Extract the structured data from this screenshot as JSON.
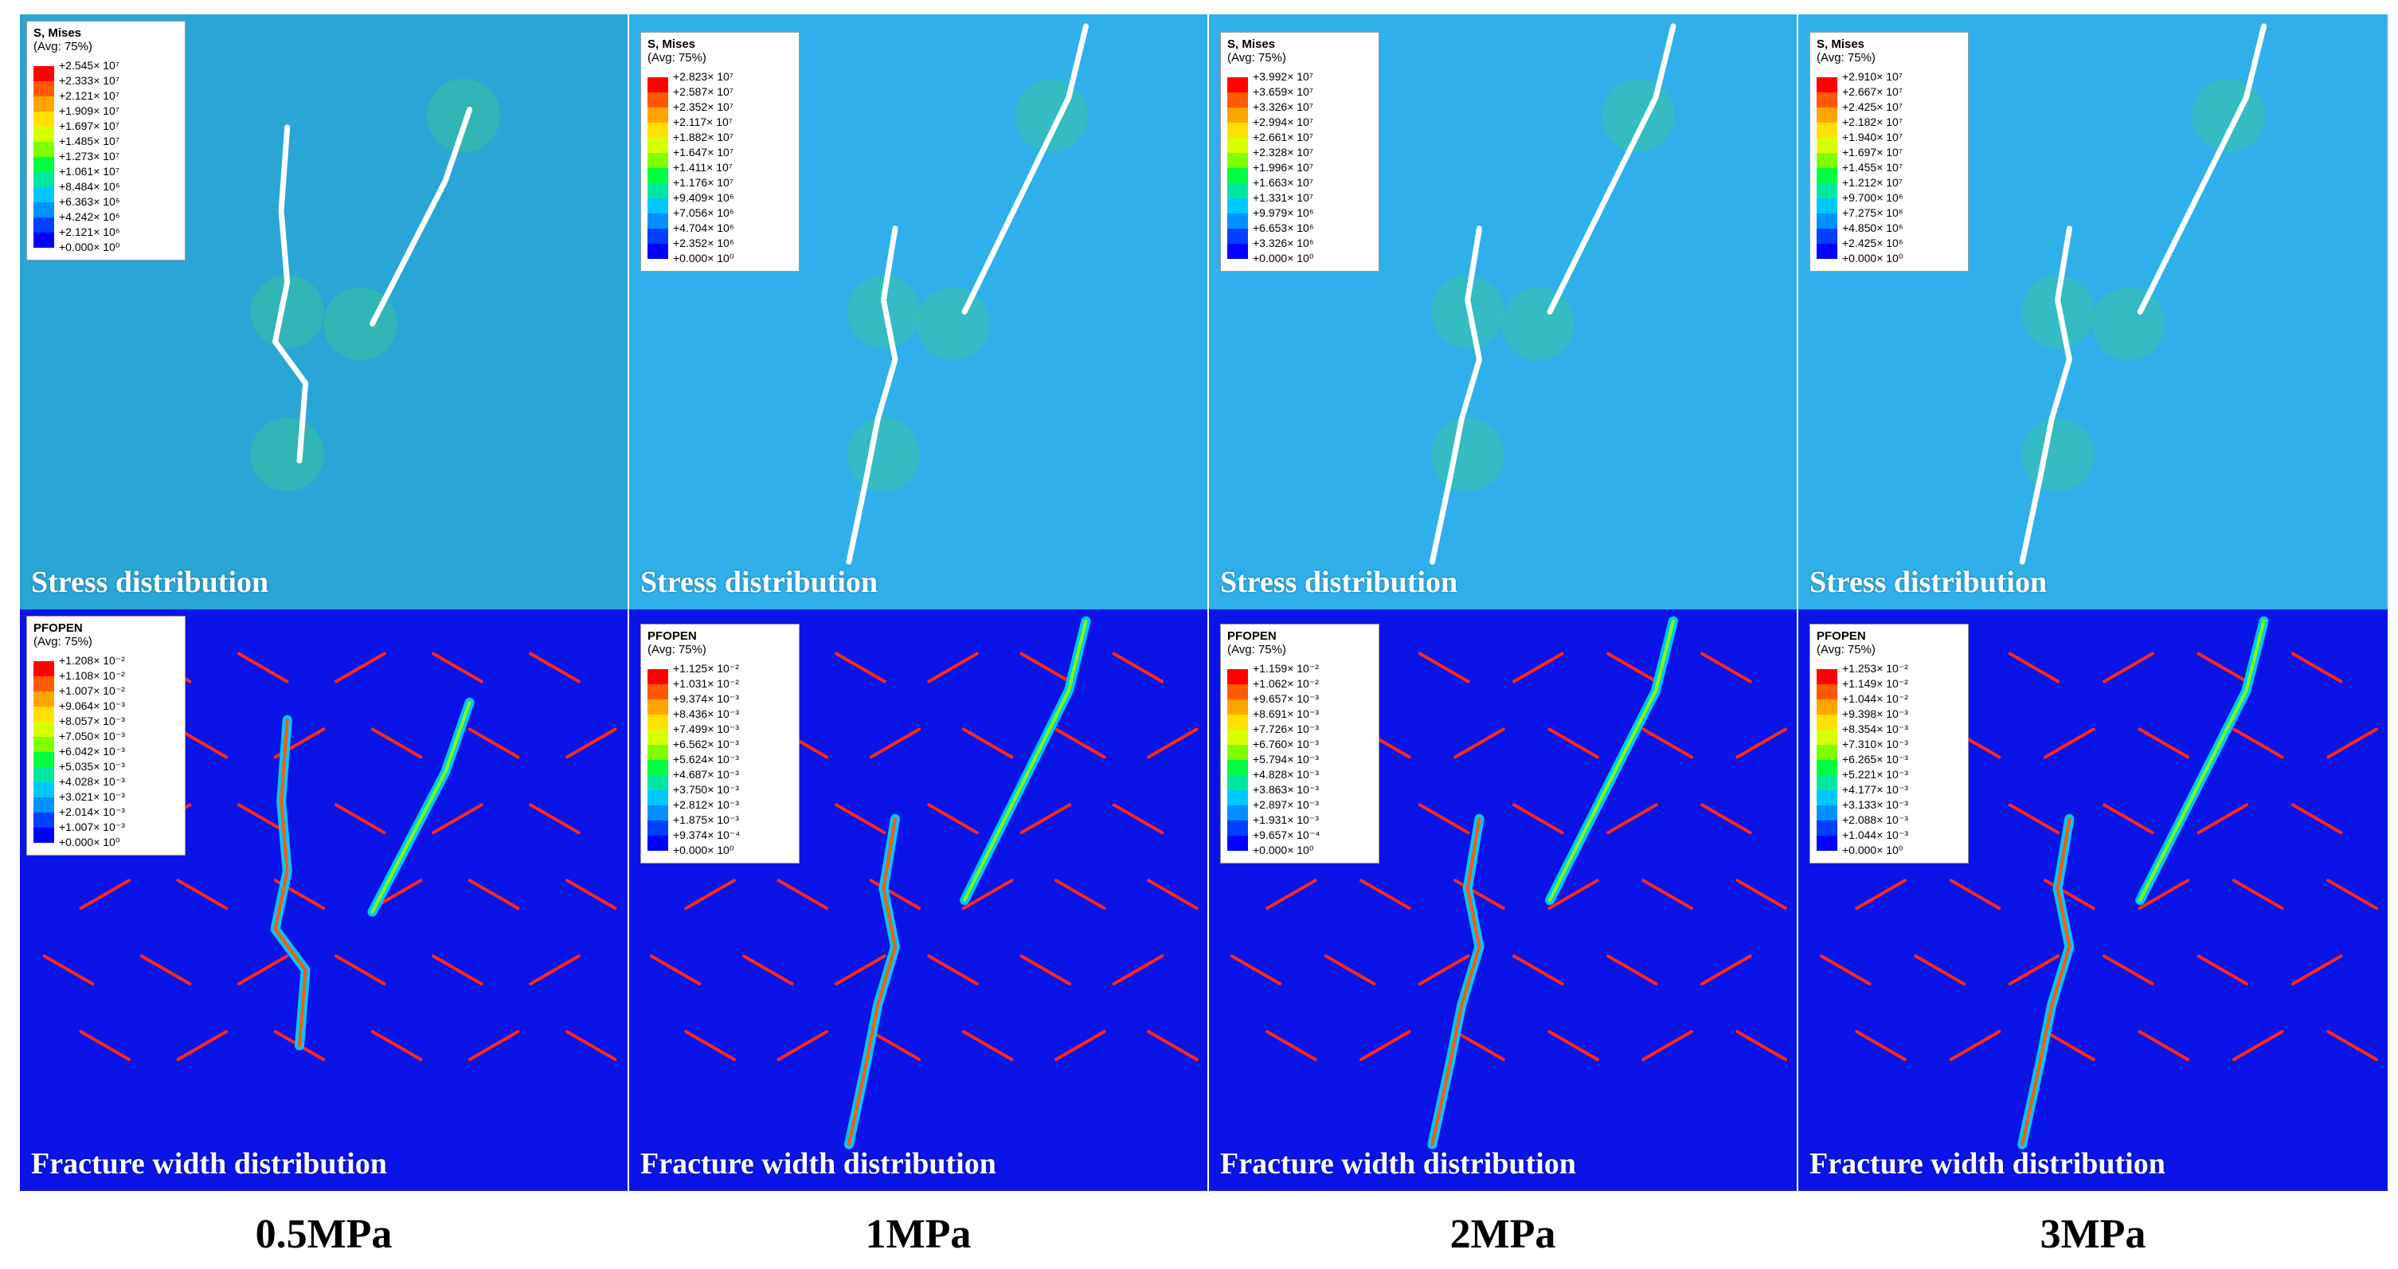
{
  "colors": {
    "stress_bg": "#2fb0ea",
    "stress_bg_first": "#2aa6d6",
    "width_bg": "#0a14e6",
    "preexisting_fracture": "#ff2a1a",
    "fracture_core": "#ffffff",
    "contour_scale": [
      "#ff0000",
      "#ff5a00",
      "#ffa500",
      "#ffe000",
      "#d8ff00",
      "#7fff00",
      "#00ff40",
      "#00e8a0",
      "#00c8ff",
      "#0090ff",
      "#0040ff",
      "#0000ff"
    ]
  },
  "pressures": [
    "0.5MPa",
    "1MPa",
    "2MPa",
    "3MPa"
  ],
  "captions": {
    "stress": "Stress distribution",
    "width": "Fracture width distribution"
  },
  "panels": [
    {
      "stress_legend": {
        "title": "S, Mises",
        "subtitle": "(Avg: 75%)",
        "values": [
          "+2.545× 10⁷",
          "+2.333× 10⁷",
          "+2.121× 10⁷",
          "+1.909× 10⁷",
          "+1.697× 10⁷",
          "+1.485× 10⁷",
          "+1.273× 10⁷",
          "+1.061× 10⁷",
          "+8.484× 10⁶",
          "+6.363× 10⁶",
          "+4.242× 10⁶",
          "+2.121× 10⁶",
          "+0.000× 10⁰"
        ]
      },
      "width_legend": {
        "title": "PFOPEN",
        "subtitle": "(Avg: 75%)",
        "values": [
          "+1.208× 10⁻²",
          "+1.108× 10⁻²",
          "+1.007× 10⁻²",
          "+9.064× 10⁻³",
          "+8.057× 10⁻³",
          "+7.050× 10⁻³",
          "+6.042× 10⁻³",
          "+5.035× 10⁻³",
          "+4.028× 10⁻³",
          "+3.021× 10⁻³",
          "+2.014× 10⁻³",
          "+1.007× 10⁻³",
          "+0.000× 10⁰"
        ]
      }
    },
    {
      "stress_legend": {
        "title": "S, Mises",
        "subtitle": "(Avg: 75%)",
        "values": [
          "+2.823× 10⁷",
          "+2.587× 10⁷",
          "+2.352× 10⁷",
          "+2.117× 10⁷",
          "+1.882× 10⁷",
          "+1.647× 10⁷",
          "+1.411× 10⁷",
          "+1.176× 10⁷",
          "+9.409× 10⁶",
          "+7.056× 10⁶",
          "+4.704× 10⁶",
          "+2.352× 10⁶",
          "+0.000× 10⁰"
        ]
      },
      "width_legend": {
        "title": "PFOPEN",
        "subtitle": "(Avg: 75%)",
        "values": [
          "+1.125× 10⁻²",
          "+1.031× 10⁻²",
          "+9.374× 10⁻³",
          "+8.436× 10⁻³",
          "+7.499× 10⁻³",
          "+6.562× 10⁻³",
          "+5.624× 10⁻³",
          "+4.687× 10⁻³",
          "+3.750× 10⁻³",
          "+2.812× 10⁻³",
          "+1.875× 10⁻³",
          "+9.374× 10⁻⁴",
          "+0.000× 10⁰"
        ]
      }
    },
    {
      "stress_legend": {
        "title": "S, Mises",
        "subtitle": "(Avg: 75%)",
        "values": [
          "+3.992× 10⁷",
          "+3.659× 10⁷",
          "+3.326× 10⁷",
          "+2.994× 10⁷",
          "+2.661× 10⁷",
          "+2.328× 10⁷",
          "+1.996× 10⁷",
          "+1.663× 10⁷",
          "+1.331× 10⁷",
          "+9.979× 10⁶",
          "+6.653× 10⁶",
          "+3.326× 10⁶",
          "+0.000× 10⁰"
        ]
      },
      "width_legend": {
        "title": "PFOPEN",
        "subtitle": "(Avg: 75%)",
        "values": [
          "+1.159× 10⁻²",
          "+1.062× 10⁻²",
          "+9.657× 10⁻³",
          "+8.691× 10⁻³",
          "+7.726× 10⁻³",
          "+6.760× 10⁻³",
          "+5.794× 10⁻³",
          "+4.828× 10⁻³",
          "+3.863× 10⁻³",
          "+2.897× 10⁻³",
          "+1.931× 10⁻³",
          "+9.657× 10⁻⁴",
          "+0.000× 10⁰"
        ]
      }
    },
    {
      "stress_legend": {
        "title": "S, Mises",
        "subtitle": "(Avg: 75%)",
        "values": [
          "+2.910× 10⁷",
          "+2.667× 10⁷",
          "+2.425× 10⁷",
          "+2.182× 10⁷",
          "+1.940× 10⁷",
          "+1.697× 10⁷",
          "+1.455× 10⁷",
          "+1.212× 10⁷",
          "+9.700× 10⁶",
          "+7.275× 10⁶",
          "+4.850× 10⁶",
          "+2.425× 10⁶",
          "+0.000× 10⁰"
        ]
      },
      "width_legend": {
        "title": "PFOPEN",
        "subtitle": "(Avg: 75%)",
        "values": [
          "+1.253× 10⁻²",
          "+1.149× 10⁻²",
          "+1.044× 10⁻²",
          "+9.398× 10⁻³",
          "+8.354× 10⁻³",
          "+7.310× 10⁻³",
          "+6.265× 10⁻³",
          "+5.221× 10⁻³",
          "+4.177× 10⁻³",
          "+3.133× 10⁻³",
          "+2.088× 10⁻³",
          "+1.044× 10⁻³",
          "+0.000× 10⁰"
        ]
      }
    }
  ]
}
